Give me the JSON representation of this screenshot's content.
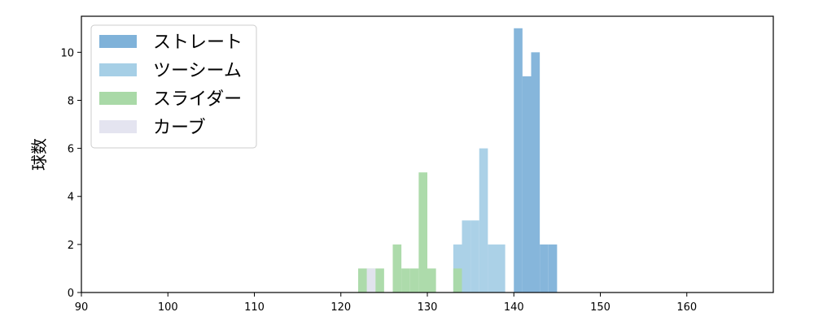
{
  "chart_data": {
    "type": "bar",
    "title": "",
    "xlabel": "",
    "ylabel": "球数",
    "xlim": [
      90,
      170
    ],
    "ylim": [
      0,
      11.5
    ],
    "xticks": [
      90,
      100,
      110,
      120,
      130,
      140,
      150,
      160
    ],
    "yticks": [
      0,
      2,
      4,
      6,
      8,
      10
    ],
    "bin_width": 1,
    "grid": false,
    "legend_position": "top-left",
    "series": [
      {
        "name": "ストレート",
        "color": "#7fb2d9",
        "bins": [
          [
            140,
            11
          ],
          [
            141,
            9
          ],
          [
            142,
            10
          ],
          [
            143,
            2
          ],
          [
            144,
            2
          ]
        ]
      },
      {
        "name": "ツーシーム",
        "color": "#a6cfe6",
        "bins": [
          [
            133,
            2
          ],
          [
            134,
            3
          ],
          [
            135,
            3
          ],
          [
            136,
            6
          ],
          [
            137,
            2
          ],
          [
            138,
            2
          ]
        ]
      },
      {
        "name": "スライダー",
        "color": "#a9d9a7",
        "bins": [
          [
            122,
            1
          ],
          [
            123,
            1
          ],
          [
            124,
            1
          ],
          [
            126,
            2
          ],
          [
            127,
            1
          ],
          [
            128,
            1
          ],
          [
            129,
            5
          ],
          [
            130,
            1
          ],
          [
            133,
            1
          ]
        ]
      },
      {
        "name": "カーブ",
        "color": "#e4e4f0",
        "bins": [
          [
            123,
            1
          ]
        ]
      }
    ]
  }
}
